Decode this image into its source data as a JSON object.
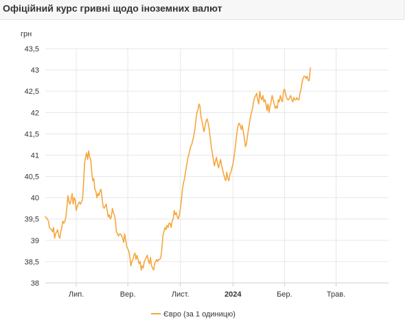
{
  "header": {
    "title": "Офіційний курс гривні щодо іноземних валют"
  },
  "colors": {
    "series": "#f5a63c",
    "grid": "#e6e6e6",
    "axis": "#cccccc"
  },
  "chart_data": {
    "type": "line",
    "ylabel": "грн",
    "ylim": [
      38,
      43.5
    ],
    "yticks": [
      "38",
      "38,5",
      "39",
      "39,5",
      "40",
      "40,5",
      "41",
      "41,5",
      "42",
      "42,5",
      "43",
      "43,5"
    ],
    "xlim": [
      0,
      333
    ],
    "xticks": [
      {
        "x": 30,
        "label": "Лип.",
        "bold": false
      },
      {
        "x": 80,
        "label": "Вер.",
        "bold": false
      },
      {
        "x": 131,
        "label": "Лист.",
        "bold": false
      },
      {
        "x": 182,
        "label": "2024",
        "bold": true
      },
      {
        "x": 232,
        "label": "Бер.",
        "bold": false
      },
      {
        "x": 282,
        "label": "Трав.",
        "bold": false
      }
    ],
    "grid": true,
    "legend": "bottom-center",
    "series": [
      {
        "name": "Євро (за 1 одиницю)",
        "points": [
          [
            0,
            39.55
          ],
          [
            2,
            39.5
          ],
          [
            3,
            39.45
          ],
          [
            4,
            39.3
          ],
          [
            6,
            39.25
          ],
          [
            7,
            39.2
          ],
          [
            8,
            39.3
          ],
          [
            9,
            39.05
          ],
          [
            10,
            39.15
          ],
          [
            11,
            39.2
          ],
          [
            12,
            39.25
          ],
          [
            13,
            39.1
          ],
          [
            14,
            39.05
          ],
          [
            15,
            39.2
          ],
          [
            16,
            39.3
          ],
          [
            17,
            39.45
          ],
          [
            18,
            39.4
          ],
          [
            19,
            39.45
          ],
          [
            20,
            39.55
          ],
          [
            21,
            39.8
          ],
          [
            22,
            40.05
          ],
          [
            23,
            39.9
          ],
          [
            24,
            39.85
          ],
          [
            25,
            39.95
          ],
          [
            26,
            40.1
          ],
          [
            27,
            39.85
          ],
          [
            28,
            40.0
          ],
          [
            29,
            39.95
          ],
          [
            30,
            39.7
          ],
          [
            31,
            39.8
          ],
          [
            32,
            39.85
          ],
          [
            33,
            39.9
          ],
          [
            34,
            39.85
          ],
          [
            35,
            39.9
          ],
          [
            36,
            39.95
          ],
          [
            37,
            40.3
          ],
          [
            38,
            40.8
          ],
          [
            39,
            40.95
          ],
          [
            40,
            41.05
          ],
          [
            41,
            40.9
          ],
          [
            42,
            41.1
          ],
          [
            43,
            40.95
          ],
          [
            44,
            40.9
          ],
          [
            45,
            40.6
          ],
          [
            46,
            40.4
          ],
          [
            47,
            40.45
          ],
          [
            48,
            40.2
          ],
          [
            49,
            40.15
          ],
          [
            50,
            40.0
          ],
          [
            51,
            40.1
          ],
          [
            52,
            40.05
          ],
          [
            53,
            40.15
          ],
          [
            54,
            40.2
          ],
          [
            55,
            40.0
          ],
          [
            56,
            39.8
          ],
          [
            57,
            39.75
          ],
          [
            58,
            39.8
          ],
          [
            59,
            39.85
          ],
          [
            60,
            39.7
          ],
          [
            61,
            39.55
          ],
          [
            62,
            39.6
          ],
          [
            63,
            39.5
          ],
          [
            64,
            39.55
          ],
          [
            65,
            39.75
          ],
          [
            66,
            39.65
          ],
          [
            67,
            39.6
          ],
          [
            68,
            39.45
          ],
          [
            69,
            39.2
          ],
          [
            70,
            39.15
          ],
          [
            71,
            39.1
          ],
          [
            72,
            39.15
          ],
          [
            73,
            39.15
          ],
          [
            74,
            39.1
          ],
          [
            75,
            39.05
          ],
          [
            76,
            38.95
          ],
          [
            77,
            39.15
          ],
          [
            78,
            39.0
          ],
          [
            79,
            38.85
          ],
          [
            80,
            38.8
          ],
          [
            81,
            38.75
          ],
          [
            82,
            38.6
          ],
          [
            83,
            38.4
          ],
          [
            84,
            38.5
          ],
          [
            85,
            38.55
          ],
          [
            86,
            38.65
          ],
          [
            87,
            38.7
          ],
          [
            88,
            38.55
          ],
          [
            89,
            38.65
          ],
          [
            90,
            38.55
          ],
          [
            91,
            38.45
          ],
          [
            92,
            38.5
          ],
          [
            93,
            38.3
          ],
          [
            94,
            38.4
          ],
          [
            95,
            38.35
          ],
          [
            96,
            38.5
          ],
          [
            97,
            38.55
          ],
          [
            98,
            38.6
          ],
          [
            99,
            38.65
          ],
          [
            100,
            38.5
          ],
          [
            101,
            38.45
          ],
          [
            102,
            38.6
          ],
          [
            103,
            38.4
          ],
          [
            104,
            38.35
          ],
          [
            105,
            38.3
          ],
          [
            106,
            38.45
          ],
          [
            107,
            38.5
          ],
          [
            108,
            38.55
          ],
          [
            109,
            38.5
          ],
          [
            110,
            38.55
          ],
          [
            111,
            38.55
          ],
          [
            112,
            38.6
          ],
          [
            113,
            38.8
          ],
          [
            114,
            39.1
          ],
          [
            115,
            39.2
          ],
          [
            116,
            39.3
          ],
          [
            117,
            39.25
          ],
          [
            118,
            39.35
          ],
          [
            119,
            39.3
          ],
          [
            120,
            39.4
          ],
          [
            121,
            39.4
          ],
          [
            122,
            39.3
          ],
          [
            123,
            39.45
          ],
          [
            124,
            39.5
          ],
          [
            125,
            39.7
          ],
          [
            126,
            39.6
          ],
          [
            127,
            39.65
          ],
          [
            128,
            39.55
          ],
          [
            129,
            39.5
          ],
          [
            130,
            39.6
          ],
          [
            131,
            39.75
          ],
          [
            132,
            39.95
          ],
          [
            133,
            40.2
          ],
          [
            134,
            40.35
          ],
          [
            135,
            40.45
          ],
          [
            136,
            40.6
          ],
          [
            137,
            40.75
          ],
          [
            138,
            40.9
          ],
          [
            139,
            41.0
          ],
          [
            140,
            41.1
          ],
          [
            141,
            41.2
          ],
          [
            142,
            41.25
          ],
          [
            143,
            41.35
          ],
          [
            144,
            41.45
          ],
          [
            145,
            41.6
          ],
          [
            146,
            41.8
          ],
          [
            147,
            42.0
          ],
          [
            148,
            42.05
          ],
          [
            149,
            42.2
          ],
          [
            150,
            42.15
          ],
          [
            151,
            41.9
          ],
          [
            152,
            41.8
          ],
          [
            153,
            41.65
          ],
          [
            154,
            41.55
          ],
          [
            155,
            41.7
          ],
          [
            156,
            41.8
          ],
          [
            157,
            41.85
          ],
          [
            158,
            41.75
          ],
          [
            159,
            41.6
          ],
          [
            160,
            41.4
          ],
          [
            161,
            41.2
          ],
          [
            162,
            41.05
          ],
          [
            163,
            40.9
          ],
          [
            164,
            40.75
          ],
          [
            165,
            40.85
          ],
          [
            166,
            40.95
          ],
          [
            167,
            40.8
          ],
          [
            168,
            40.7
          ],
          [
            169,
            40.8
          ],
          [
            170,
            40.9
          ],
          [
            171,
            40.75
          ],
          [
            172,
            40.65
          ],
          [
            173,
            40.55
          ],
          [
            174,
            40.45
          ],
          [
            175,
            40.4
          ],
          [
            176,
            40.6
          ],
          [
            177,
            40.45
          ],
          [
            178,
            40.4
          ],
          [
            179,
            40.55
          ],
          [
            180,
            40.6
          ],
          [
            181,
            40.7
          ],
          [
            182,
            40.8
          ],
          [
            183,
            40.95
          ],
          [
            184,
            41.15
          ],
          [
            185,
            41.35
          ],
          [
            186,
            41.55
          ],
          [
            187,
            41.7
          ],
          [
            188,
            41.75
          ],
          [
            189,
            41.7
          ],
          [
            190,
            41.6
          ],
          [
            191,
            41.7
          ],
          [
            192,
            41.55
          ],
          [
            193,
            41.4
          ],
          [
            194,
            41.2
          ],
          [
            195,
            41.25
          ],
          [
            196,
            41.45
          ],
          [
            197,
            41.6
          ],
          [
            198,
            41.75
          ],
          [
            199,
            41.9
          ],
          [
            200,
            42.0
          ],
          [
            201,
            42.1
          ],
          [
            202,
            42.25
          ],
          [
            203,
            42.35
          ],
          [
            204,
            42.4
          ],
          [
            205,
            42.45
          ],
          [
            206,
            42.3
          ],
          [
            207,
            42.2
          ],
          [
            208,
            42.5
          ],
          [
            209,
            42.35
          ],
          [
            210,
            42.3
          ],
          [
            211,
            42.4
          ],
          [
            212,
            42.25
          ],
          [
            213,
            42.3
          ],
          [
            214,
            42.2
          ],
          [
            215,
            42.05
          ],
          [
            216,
            42.2
          ],
          [
            217,
            42.0
          ],
          [
            218,
            42.15
          ],
          [
            219,
            42.25
          ],
          [
            220,
            42.4
          ],
          [
            221,
            42.3
          ],
          [
            222,
            42.2
          ],
          [
            223,
            42.1
          ],
          [
            224,
            42.15
          ],
          [
            225,
            42.1
          ],
          [
            226,
            42.3
          ],
          [
            227,
            42.25
          ],
          [
            228,
            42.4
          ],
          [
            229,
            42.3
          ],
          [
            230,
            42.25
          ],
          [
            231,
            42.5
          ],
          [
            232,
            42.55
          ],
          [
            233,
            42.45
          ],
          [
            234,
            42.35
          ],
          [
            235,
            42.3
          ],
          [
            236,
            42.3
          ],
          [
            237,
            42.35
          ],
          [
            238,
            42.4
          ],
          [
            239,
            42.3
          ],
          [
            240,
            42.25
          ],
          [
            241,
            42.35
          ],
          [
            242,
            42.3
          ],
          [
            243,
            42.3
          ],
          [
            244,
            42.35
          ],
          [
            245,
            42.3
          ],
          [
            246,
            42.3
          ],
          [
            247,
            42.45
          ],
          [
            248,
            42.55
          ],
          [
            249,
            42.7
          ],
          [
            250,
            42.8
          ],
          [
            251,
            42.85
          ],
          [
            252,
            42.85
          ],
          [
            253,
            42.8
          ],
          [
            254,
            42.85
          ],
          [
            255,
            42.75
          ],
          [
            256,
            42.75
          ],
          [
            257,
            43.05
          ]
        ]
      }
    ]
  }
}
